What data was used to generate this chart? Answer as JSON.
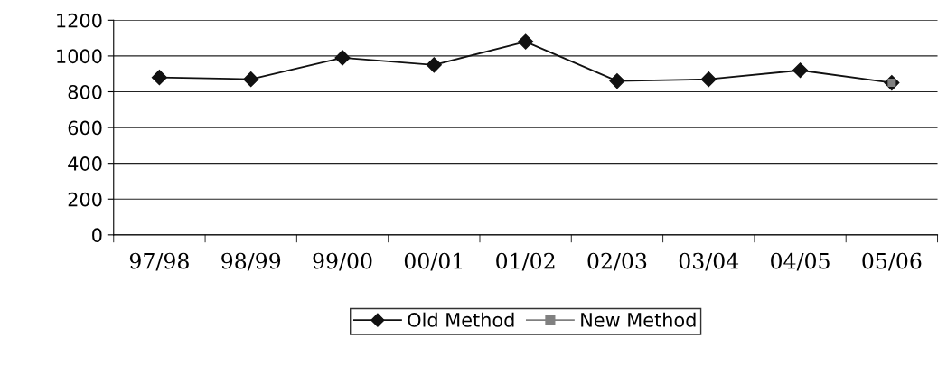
{
  "chart_data": {
    "type": "line",
    "categories": [
      "97/98",
      "98/99",
      "99/00",
      "00/01",
      "01/02",
      "02/03",
      "03/04",
      "04/05",
      "05/06"
    ],
    "series": [
      {
        "name": "Old Method",
        "color": "#111111",
        "marker": "diamond",
        "values": [
          880,
          870,
          990,
          950,
          1080,
          860,
          870,
          920,
          850
        ]
      },
      {
        "name": "New Method",
        "color": "#808080",
        "marker": "square",
        "values": [
          null,
          null,
          null,
          null,
          null,
          null,
          null,
          null,
          850
        ]
      }
    ],
    "ylim": [
      0,
      1200
    ],
    "yticks": [
      0,
      200,
      400,
      600,
      800,
      1000,
      1200
    ],
    "grid": "y",
    "legend": "bottom",
    "line_style": "solid"
  }
}
